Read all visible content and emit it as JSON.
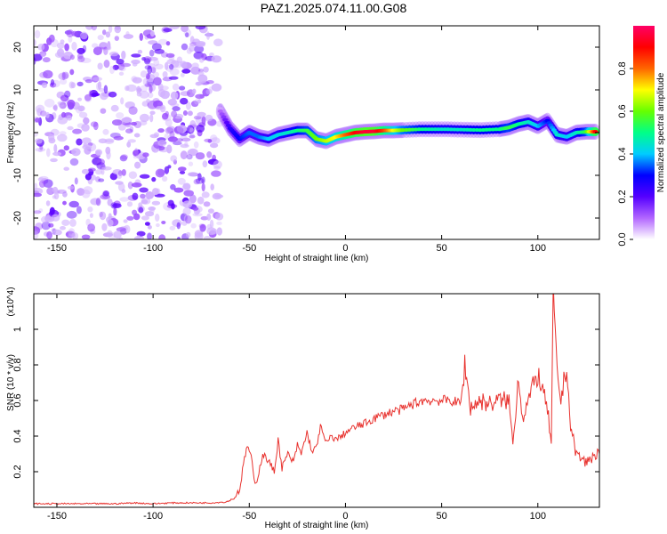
{
  "page_title": "PAZ1.2025.074.11.00.G08",
  "chart_data": [
    {
      "type": "heatmap",
      "xlabel": "Height of straight line (km)",
      "ylabel": "Frequency (Hz)",
      "xlim": [
        -162,
        132
      ],
      "ylim": [
        -25,
        25
      ],
      "x_ticks": [
        -150,
        -100,
        -50,
        0,
        50,
        100
      ],
      "y_ticks": [
        -20,
        -10,
        0,
        10,
        20
      ],
      "colorbar": {
        "label": "Normalized spectral amplitude",
        "range": [
          0,
          1
        ],
        "ticks": [
          0.0,
          0.2,
          0.4,
          0.6,
          0.8
        ],
        "colormap": [
          "#ffffff",
          "#b266ff",
          "#5500ff",
          "#0000ff",
          "#00ccff",
          "#00ff88",
          "#66ff00",
          "#ffff00",
          "#ff6600",
          "#ff0000",
          "#ff0066"
        ]
      },
      "noise_region": {
        "x_range": [
          -162,
          -65
        ],
        "frequency_range": [
          -25,
          25
        ],
        "level": 0.05
      },
      "ridge": {
        "x": [
          -65,
          -60,
          -55,
          -50,
          -45,
          -40,
          -35,
          -30,
          -25,
          -20,
          -15,
          -10,
          -5,
          0,
          5,
          10,
          15,
          20,
          25,
          30,
          40,
          50,
          60,
          70,
          80,
          85,
          90,
          95,
          100,
          105,
          110,
          115,
          120,
          125,
          130
        ],
        "frequency": [
          5,
          1,
          -1.5,
          0,
          -1,
          -1.5,
          -0.5,
          0,
          0.5,
          0.5,
          -1.5,
          -2,
          -1,
          -0.5,
          0,
          0.2,
          0.3,
          0.5,
          0.5,
          0.6,
          0.8,
          0.8,
          0.7,
          0.6,
          0.8,
          1.2,
          2,
          2.5,
          1.5,
          2.8,
          -0.5,
          -1,
          0,
          0.2,
          0.2
        ],
        "amplitude": [
          0.1,
          0.25,
          0.3,
          0.35,
          0.35,
          0.4,
          0.42,
          0.45,
          0.5,
          0.55,
          0.6,
          0.65,
          0.7,
          0.8,
          0.9,
          0.95,
          0.95,
          0.85,
          0.7,
          0.6,
          0.5,
          0.45,
          0.45,
          0.5,
          0.5,
          0.55,
          0.5,
          0.45,
          0.4,
          0.3,
          0.45,
          0.4,
          0.45,
          0.55,
          0.9
        ]
      }
    },
    {
      "type": "line",
      "xlabel": "Height of straight line (km)",
      "ylabel": "SNR (10 * v/v)",
      "y_multiplier": "(x10^4)",
      "xlim": [
        -162,
        132
      ],
      "ylim": [
        0,
        1.2
      ],
      "x_ticks": [
        -150,
        -100,
        -50,
        0,
        50,
        100
      ],
      "y_ticks": [
        0.2,
        0.4,
        0.6,
        0.8,
        1.0
      ],
      "series_color": "#e8322e",
      "series": [
        {
          "x": [
            -162,
            -150,
            -140,
            -130,
            -120,
            -110,
            -100,
            -90,
            -80,
            -70,
            -62,
            -58,
            -55,
            -53,
            -51,
            -49,
            -47,
            -45,
            -43,
            -40,
            -37,
            -35,
            -33,
            -30,
            -27,
            -25,
            -23,
            -20,
            -17,
            -15,
            -13,
            -10,
            -7,
            -5,
            -2,
            0,
            5,
            10,
            15,
            20,
            25,
            30,
            35,
            40,
            45,
            50,
            55,
            60,
            62,
            65,
            70,
            75,
            80,
            85,
            87,
            90,
            92,
            95,
            100,
            105,
            107,
            108,
            110,
            112,
            115,
            117,
            120,
            125,
            130,
            132
          ],
          "y": [
            0.02,
            0.02,
            0.02,
            0.02,
            0.02,
            0.025,
            0.02,
            0.025,
            0.025,
            0.025,
            0.03,
            0.05,
            0.1,
            0.24,
            0.35,
            0.28,
            0.12,
            0.2,
            0.3,
            0.26,
            0.2,
            0.38,
            0.22,
            0.3,
            0.25,
            0.35,
            0.3,
            0.42,
            0.3,
            0.35,
            0.45,
            0.36,
            0.4,
            0.38,
            0.4,
            0.42,
            0.45,
            0.47,
            0.5,
            0.52,
            0.54,
            0.55,
            0.58,
            0.6,
            0.6,
            0.6,
            0.6,
            0.58,
            0.8,
            0.56,
            0.6,
            0.58,
            0.6,
            0.6,
            0.35,
            0.75,
            0.5,
            0.6,
            0.75,
            0.55,
            0.35,
            1.18,
            0.75,
            0.6,
            0.8,
            0.45,
            0.3,
            0.25,
            0.3,
            0.3
          ]
        }
      ]
    }
  ]
}
